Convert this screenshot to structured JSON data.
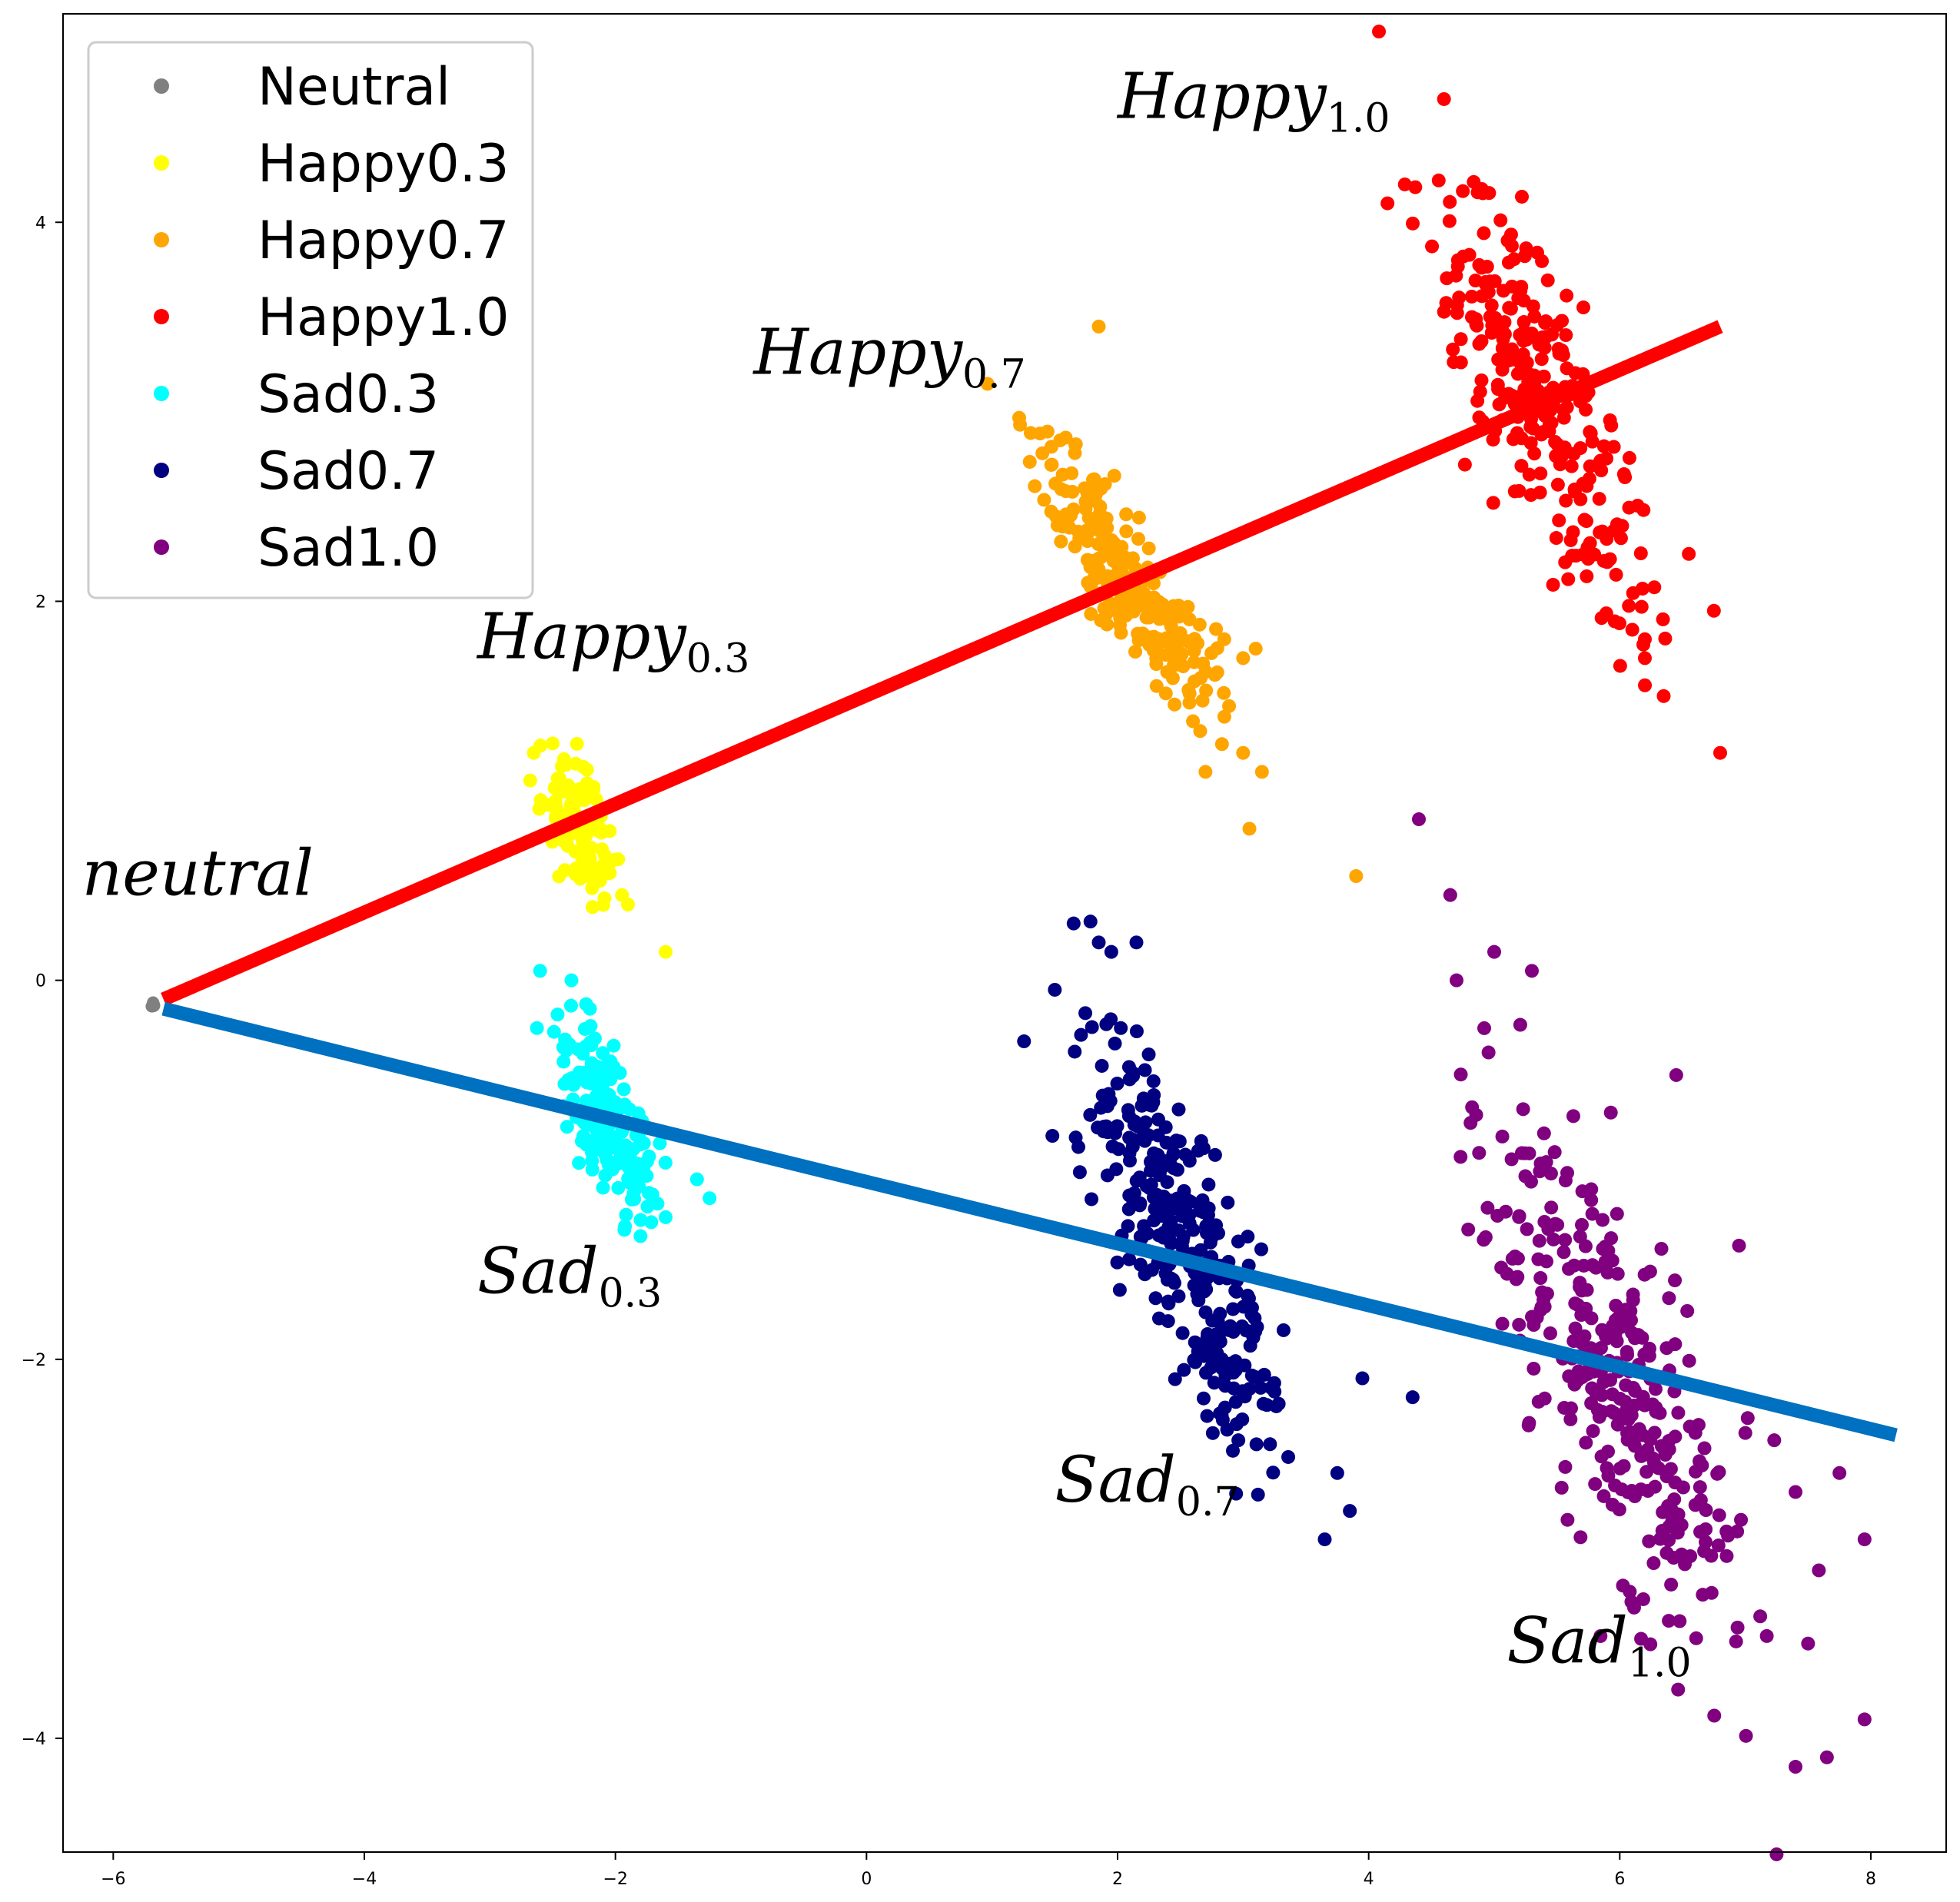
{
  "chart_data": {
    "type": "scatter",
    "title": "",
    "xlabel": "",
    "ylabel": "",
    "xlim": [
      -6.4,
      8.6
    ],
    "ylim": [
      -4.6,
      5.1
    ],
    "xticks": [
      -6,
      -4,
      -2,
      0,
      2,
      4,
      6,
      8
    ],
    "yticks": [
      -4,
      -2,
      0,
      2,
      4
    ],
    "tick_labels": {
      "x": [
        "−6",
        "−4",
        "−2",
        "0",
        "2",
        "4",
        "6",
        "8"
      ],
      "y": [
        "−4",
        "−2",
        "0",
        "2",
        "4"
      ]
    },
    "grid": false,
    "legend_position": "top-left",
    "series": [
      {
        "name": "Neutral",
        "color": "#808080",
        "cluster": {
          "cx": -5.68,
          "cy": -0.13,
          "sx": 0.01,
          "sy": 0.01,
          "rho": 0,
          "n": 6,
          "seed": 11
        },
        "points": [
          [
            -5.68,
            -0.13
          ]
        ]
      },
      {
        "name": "Happy0.3",
        "color": "#ffff00",
        "cluster": {
          "cx": -2.3,
          "cy": 0.8,
          "sx": 0.14,
          "sy": 0.18,
          "rho": -0.6,
          "n": 110,
          "seed": 23
        },
        "points": [
          [
            -1.6,
            0.15
          ],
          [
            -2.5,
            1.25
          ],
          [
            -2.65,
            1.2
          ],
          [
            -1.9,
            0.4
          ]
        ]
      },
      {
        "name": "Happy0.7",
        "color": "#ffa500",
        "cluster": {
          "cx": 2.05,
          "cy": 2.15,
          "sx": 0.35,
          "sy": 0.35,
          "rho": -0.85,
          "n": 240,
          "seed": 37
        },
        "points": [
          [
            1.85,
            3.45
          ],
          [
            3.05,
            0.8
          ],
          [
            3.9,
            0.55
          ],
          [
            3.15,
            1.1
          ],
          [
            3.0,
            1.2
          ],
          [
            2.7,
            1.1
          ],
          [
            3.1,
            1.75
          ],
          [
            3.0,
            1.7
          ],
          [
            2.85,
            1.8
          ]
        ]
      },
      {
        "name": "Happy1.0",
        "color": "#ff0000",
        "cluster": {
          "cx": 5.35,
          "cy": 3.05,
          "sx": 0.42,
          "sy": 0.55,
          "rho": -0.75,
          "n": 280,
          "seed": 51
        },
        "points": [
          [
            4.6,
            4.65
          ],
          [
            4.15,
            4.1
          ],
          [
            6.8,
            1.2
          ],
          [
            6.35,
            1.5
          ],
          [
            6.75,
            1.95
          ],
          [
            6.55,
            2.25
          ],
          [
            6.1,
            1.85
          ],
          [
            6.2,
            1.8
          ],
          [
            6.2,
            1.7
          ]
        ]
      },
      {
        "name": "Sad0.3",
        "color": "#00ffff",
        "cluster": {
          "cx": -2.1,
          "cy": -0.75,
          "sx": 0.18,
          "sy": 0.25,
          "rho": -0.65,
          "n": 170,
          "seed": 67
        },
        "points": [
          [
            -2.6,
            0.05
          ],
          [
            -2.35,
            0.0
          ],
          [
            -1.25,
            -1.15
          ],
          [
            -1.35,
            -1.05
          ],
          [
            -1.6,
            -1.25
          ],
          [
            -1.8,
            -1.35
          ]
        ]
      },
      {
        "name": "Sad0.7",
        "color": "#000080",
        "cluster": {
          "cx": 2.5,
          "cy": -1.35,
          "sx": 0.4,
          "sy": 0.55,
          "rho": -0.8,
          "n": 320,
          "seed": 79
        },
        "points": [
          [
            1.65,
            0.3
          ],
          [
            2.15,
            0.2
          ],
          [
            1.95,
            0.15
          ],
          [
            1.85,
            0.2
          ],
          [
            3.65,
            -2.95
          ],
          [
            3.85,
            -2.8
          ],
          [
            3.95,
            -2.1
          ],
          [
            4.35,
            -2.2
          ],
          [
            3.75,
            -2.6
          ],
          [
            1.5,
            -0.05
          ]
        ]
      },
      {
        "name": "Sad1.0",
        "color": "#800080",
        "cluster": {
          "cx": 5.9,
          "cy": -2.05,
          "sx": 0.55,
          "sy": 0.75,
          "rho": -0.75,
          "n": 330,
          "seed": 97
        },
        "points": [
          [
            4.4,
            0.85
          ],
          [
            4.65,
            0.45
          ],
          [
            5.0,
            0.15
          ],
          [
            5.3,
            0.05
          ],
          [
            4.7,
            0.0
          ],
          [
            7.4,
            -4.15
          ],
          [
            7.65,
            -4.1
          ],
          [
            7.95,
            -3.9
          ],
          [
            7.95,
            -2.95
          ],
          [
            7.5,
            -3.5
          ],
          [
            7.4,
            -2.7
          ],
          [
            7.75,
            -2.6
          ],
          [
            6.95,
            -1.4
          ],
          [
            6.45,
            -0.5
          ]
        ]
      }
    ],
    "lines": [
      {
        "color": "#ff0000",
        "from": [
          -5.6,
          -0.1
        ],
        "to": [
          6.8,
          3.45
        ]
      },
      {
        "color": "#0070c0",
        "from": [
          -5.6,
          -0.15
        ],
        "to": [
          8.2,
          -2.4
        ]
      }
    ],
    "annotations": [
      {
        "main": "neutral",
        "sub": "",
        "x": -6.25,
        "y": 0.45
      },
      {
        "main": "Happy",
        "sub": "0.3",
        "x": -3.1,
        "y": 1.7
      },
      {
        "main": "Happy",
        "sub": "0.7",
        "x": -0.9,
        "y": 3.2
      },
      {
        "main": "Happy",
        "sub": "1.0",
        "x": 2.0,
        "y": 4.55
      },
      {
        "main": "Sad",
        "sub": "0.3",
        "x": -3.1,
        "y": -1.65
      },
      {
        "main": "Sad",
        "sub": "0.7",
        "x": 1.5,
        "y": -2.75
      },
      {
        "main": "Sad",
        "sub": "1.0",
        "x": 5.1,
        "y": -3.6
      }
    ]
  }
}
